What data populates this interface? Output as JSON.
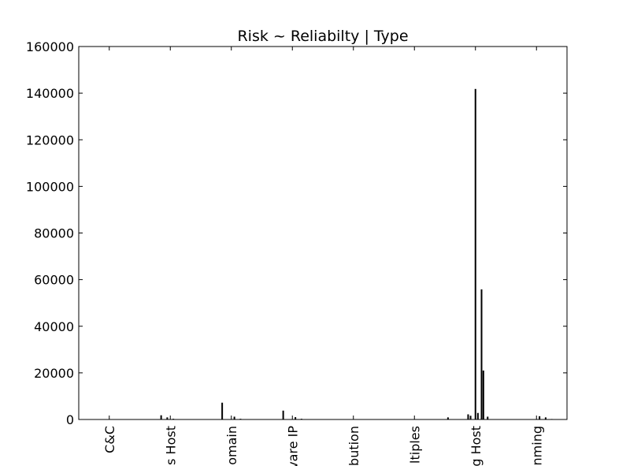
{
  "chart_data": {
    "type": "bar",
    "title": "Risk ~ Reliabilty | Type",
    "xlabel": "",
    "ylabel": "",
    "ylim": [
      0,
      160000
    ],
    "yticks": [
      0,
      20000,
      40000,
      60000,
      80000,
      100000,
      120000,
      140000,
      160000
    ],
    "categories": [
      "C&C",
      "s Host",
      "omain",
      "vare IP",
      "bution",
      "ltiples",
      "g Host",
      "nming"
    ],
    "bars": [
      {
        "x": 0.0,
        "value": 150
      },
      {
        "x": 0.15,
        "value": 100
      },
      {
        "x": 0.85,
        "value": 1800
      },
      {
        "x": 0.95,
        "value": 900
      },
      {
        "x": 1.05,
        "value": 300
      },
      {
        "x": 1.85,
        "value": 7200
      },
      {
        "x": 2.05,
        "value": 1200
      },
      {
        "x": 2.15,
        "value": 300
      },
      {
        "x": 2.85,
        "value": 3800
      },
      {
        "x": 3.05,
        "value": 1000
      },
      {
        "x": 3.15,
        "value": 300
      },
      {
        "x": 4.05,
        "value": 150
      },
      {
        "x": 5.05,
        "value": 100
      },
      {
        "x": 5.55,
        "value": 900
      },
      {
        "x": 5.88,
        "value": 2200
      },
      {
        "x": 5.92,
        "value": 1600
      },
      {
        "x": 6.0,
        "value": 141800
      },
      {
        "x": 6.04,
        "value": 2800
      },
      {
        "x": 6.1,
        "value": 55800
      },
      {
        "x": 6.13,
        "value": 21000
      },
      {
        "x": 6.2,
        "value": 1200
      },
      {
        "x": 7.05,
        "value": 1400
      },
      {
        "x": 7.15,
        "value": 900
      },
      {
        "x": 7.25,
        "value": 200
      }
    ]
  }
}
